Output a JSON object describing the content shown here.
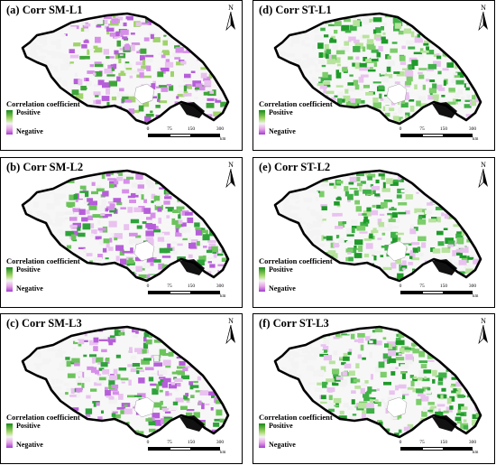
{
  "panels": [
    {
      "id": "a",
      "title": "(a) Corr SM-L1",
      "scheme": "purple"
    },
    {
      "id": "d",
      "title": "(d) Corr ST-L1",
      "scheme": "green"
    },
    {
      "id": "b",
      "title": "(b) Corr SM-L2",
      "scheme": "mixed"
    },
    {
      "id": "e",
      "title": "(e) Corr ST-L2",
      "scheme": "green"
    },
    {
      "id": "c",
      "title": "(c) Corr SM-L3",
      "scheme": "mixed"
    },
    {
      "id": "f",
      "title": "(f) Corr ST-L3",
      "scheme": "green"
    }
  ],
  "legend": {
    "title": "Correlation coefficient",
    "positive": "Positive",
    "negative": "Negative",
    "colors": {
      "positive": "#1a8a1a",
      "neutral": "#f4f4f4",
      "negative": "#a23ecf"
    }
  },
  "scalebar": {
    "ticks": [
      "0",
      "75",
      "150",
      "300"
    ],
    "unit": "km"
  },
  "north_arrow": {
    "label": "N",
    "icon": "north-arrow-icon"
  }
}
